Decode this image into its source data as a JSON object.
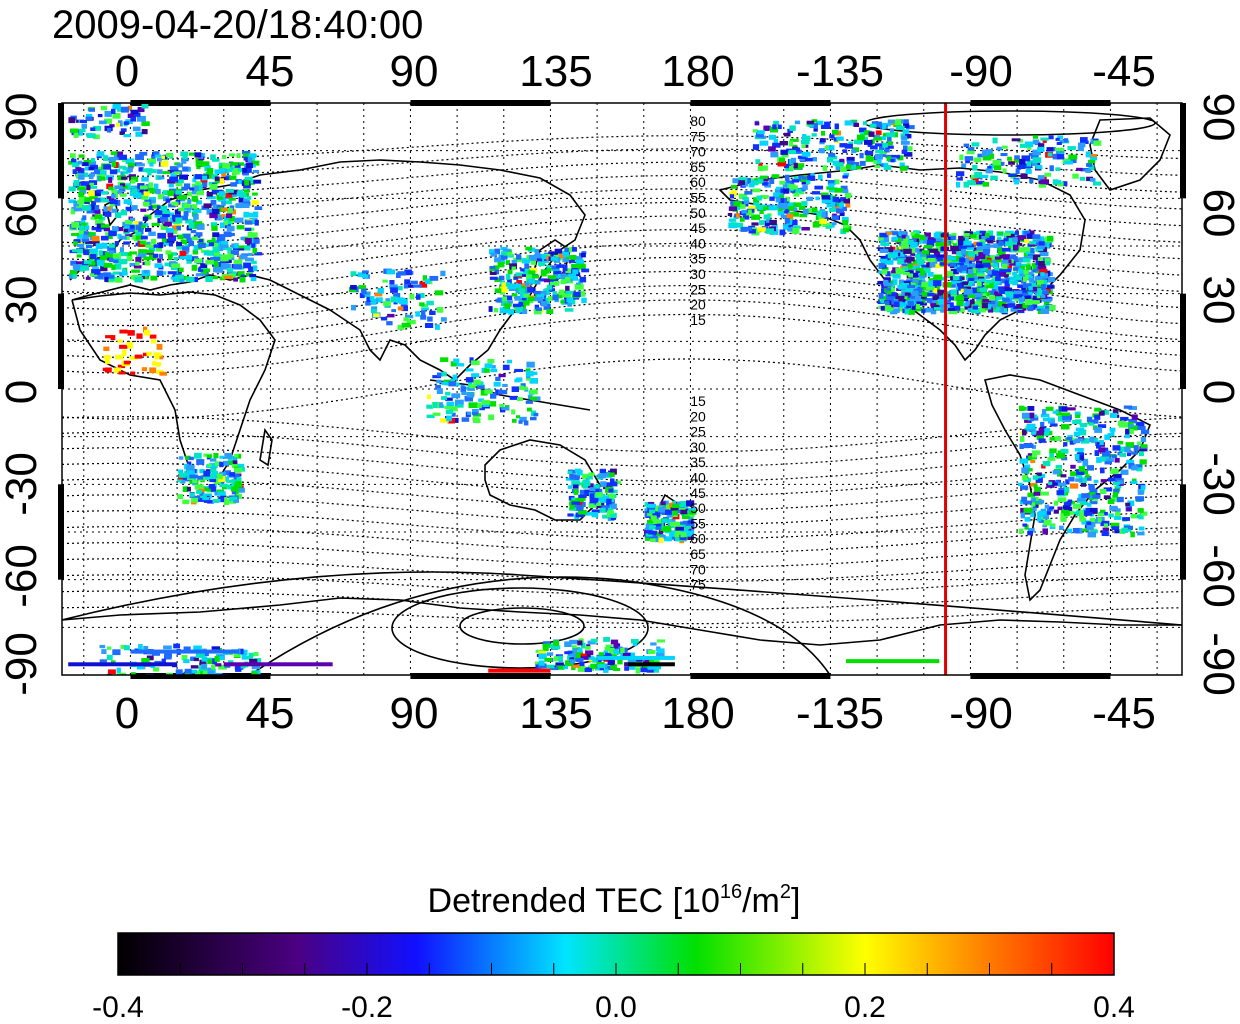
{
  "map": {
    "timestamp": "2009-04-20/18:40:00",
    "top_lon_ticks": [
      "0",
      "45",
      "90",
      "135",
      "180",
      "-135",
      "-90",
      "-45"
    ],
    "bottom_lon_ticks": [
      "0",
      "45",
      "90",
      "135",
      "180",
      "-135",
      "-90",
      "-45"
    ],
    "left_lat_ticks": [
      "90",
      "60",
      "30",
      "0",
      "-30",
      "-60",
      "-90"
    ],
    "right_lat_ticks": [
      "90",
      "60",
      "30",
      "0",
      "-30",
      "-60",
      "-90"
    ],
    "contour_labels_north": [
      "80",
      "75",
      "70",
      "65",
      "60",
      "55",
      "50",
      "45",
      "40",
      "35",
      "30",
      "25",
      "20",
      "15"
    ],
    "contour_labels_south": [
      "15",
      "20",
      "25",
      "30",
      "35",
      "40",
      "45",
      "50",
      "55",
      "60",
      "65",
      "70",
      "75"
    ],
    "marker_line": {
      "longitude": -98,
      "color": "#e00000"
    },
    "graticule": "dotted"
  },
  "colorbar": {
    "title_main": "Detrended TEC  [10",
    "title_exp1": "16",
    "title_mid": "/m",
    "title_exp2": "2",
    "title_end": "]",
    "ticks": [
      "-0.4",
      "-0.2",
      "0.0",
      "0.2",
      "0.4"
    ],
    "range": [
      -0.4,
      0.4
    ],
    "colors": [
      "#000000",
      "#4b0082",
      "#1010ff",
      "#00e5ff",
      "#00e000",
      "#ffff00",
      "#ff8000",
      "#ff0000"
    ]
  }
}
